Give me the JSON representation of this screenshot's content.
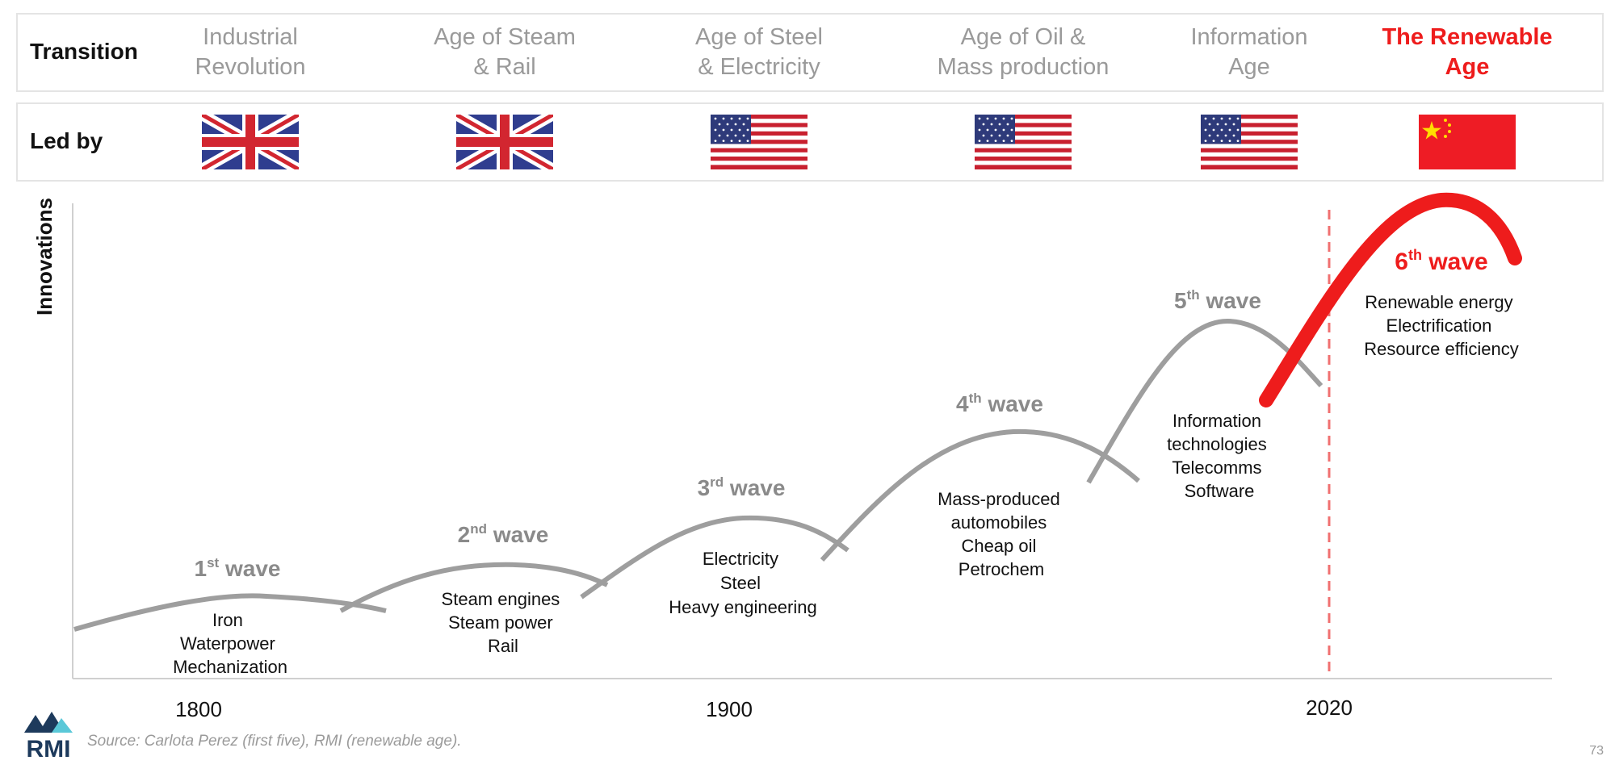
{
  "rows": {
    "transition_label": "Transition",
    "ledby_label": "Led by"
  },
  "eras": [
    {
      "line1": "Industrial",
      "line2": "Revolution",
      "flag": "uk-flag-icon",
      "highlight": false
    },
    {
      "line1": "Age of Steam",
      "line2": "& Rail",
      "flag": "uk-flag-icon",
      "highlight": false
    },
    {
      "line1": "Age of Steel",
      "line2": "& Electricity",
      "flag": "us-flag-icon",
      "highlight": false
    },
    {
      "line1": "Age of Oil &",
      "line2": "Mass production",
      "flag": "us-flag-icon",
      "highlight": false
    },
    {
      "line1": "Information",
      "line2": "Age",
      "flag": "us-flag-icon",
      "highlight": false
    },
    {
      "line1": "The Renewable",
      "line2": "Age",
      "flag": "china-flag-icon",
      "highlight": true
    }
  ],
  "chart": {
    "y_axis_label": "Innovations",
    "x_ticks": [
      "1800",
      "1900",
      "2020"
    ],
    "waves": [
      {
        "num": "1",
        "sup": "st",
        "word": "wave",
        "items": [
          "Iron",
          "Waterpower",
          "Mechanization"
        ]
      },
      {
        "num": "2",
        "sup": "nd",
        "word": "wave",
        "items": [
          "Steam engines",
          "Steam power",
          "Rail"
        ]
      },
      {
        "num": "3",
        "sup": "rd",
        "word": "wave",
        "items": [
          "Electricity",
          "Steel",
          "Heavy engineering"
        ]
      },
      {
        "num": "4",
        "sup": "th",
        "word": "wave",
        "items": [
          "Mass-produced",
          "automobiles",
          "Cheap oil",
          "Petrochem"
        ]
      },
      {
        "num": "5",
        "sup": "th",
        "word": "wave",
        "items": [
          "Information",
          "technologies",
          "Telecomms",
          "Software"
        ]
      },
      {
        "num": "6",
        "sup": "th",
        "word": "wave",
        "items": [
          "Renewable energy",
          "Electrification",
          "Resource efficiency"
        ]
      }
    ],
    "colors": {
      "wave": "#9e9e9e",
      "label": "#8a8a8a",
      "accent": "#ee1c1c",
      "axis": "#d0d0d0"
    }
  },
  "footer": {
    "logo_text": "RMI",
    "source": "Source: Carlota Perez (first five), RMI (renewable age).",
    "page_number": "73"
  }
}
